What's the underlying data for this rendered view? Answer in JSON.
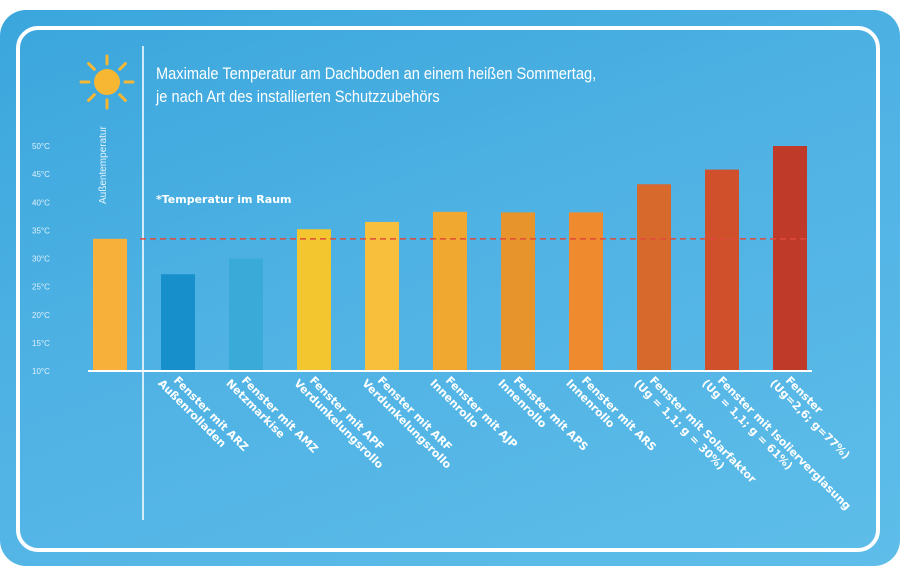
{
  "title": {
    "line1": "Maximale Temperatur am Dachboden an einem heißen Sommertag,",
    "line2": "je nach Art des installierten Schutzzubehörs"
  },
  "colors": {
    "background": "#4fb2e4",
    "frame": "#ffffff",
    "reference_line": "#e04a3a",
    "sun": "#f7b733"
  },
  "icons": {
    "title_icon": "sun-icon"
  },
  "chart_data": {
    "type": "bar",
    "ylabel": "Außentemperatur",
    "y_ticks": [
      "50°C",
      "45°C",
      "40°C",
      "35°C",
      "30°C",
      "25°C",
      "20°C",
      "15°C",
      "10°C"
    ],
    "ylim": [
      10,
      50
    ],
    "grid": false,
    "reference": {
      "label": "*Temperatur im Raum",
      "value": 33.5
    },
    "categories": [
      {
        "line1": "",
        "line2": ""
      },
      {
        "line1": "Fenster mit ARZ",
        "line2": "Außenrolladen"
      },
      {
        "line1": "Fenster mit AMZ",
        "line2": "Netzmarkise"
      },
      {
        "line1": "Fenster mit APF",
        "line2": "Verdunkelungsrollo"
      },
      {
        "line1": "Fenster mit ARF",
        "line2": "Verdunkelungsrollo"
      },
      {
        "line1": "Fenster mit AJP",
        "line2": "Innenrollo"
      },
      {
        "line1": "Fenster mit APS",
        "line2": "Innenrollo"
      },
      {
        "line1": "Fenster mit ARS",
        "line2": "Innenrollo"
      },
      {
        "line1": "Fenster mit Solarfaktor",
        "line2": "(Ug = 1,1; g = 30%)"
      },
      {
        "line1": "Fenster mit Isolierverglasung",
        "line2": "(Ug = 1,1; g = 61%)"
      },
      {
        "line1": "Fenster",
        "line2": "(Ug=2,6; g=77%)"
      }
    ],
    "values": [
      33.5,
      27.2,
      30.0,
      35.2,
      36.5,
      38.3,
      38.2,
      38.2,
      43.2,
      45.8,
      50.0
    ],
    "bar_colors": [
      "#f7b13a",
      "#168fcb",
      "#3aaad9",
      "#f3c52e",
      "#f7bf3c",
      "#f0a830",
      "#e8942c",
      "#f08a2e",
      "#d8692c",
      "#d0502c",
      "#c03a2a"
    ]
  }
}
